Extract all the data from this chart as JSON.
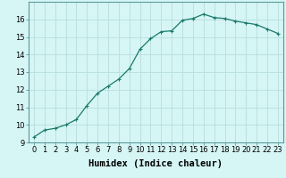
{
  "x": [
    0,
    1,
    2,
    3,
    4,
    5,
    6,
    7,
    8,
    9,
    10,
    11,
    12,
    13,
    14,
    15,
    16,
    17,
    18,
    19,
    20,
    21,
    22,
    23
  ],
  "y": [
    9.3,
    9.7,
    9.8,
    10.0,
    10.3,
    11.1,
    11.8,
    12.2,
    12.6,
    13.2,
    14.3,
    14.9,
    15.3,
    15.35,
    15.95,
    16.05,
    16.3,
    16.1,
    16.05,
    15.9,
    15.8,
    15.7,
    15.45,
    15.2
  ],
  "xlabel": "Humidex (Indice chaleur)",
  "line_color": "#1a7a6a",
  "marker": "+",
  "bg_color": "#d6f5f5",
  "grid_color": "#b8dede",
  "ylim": [
    9,
    17
  ],
  "xlim": [
    -0.5,
    23.5
  ],
  "yticks": [
    9,
    10,
    11,
    12,
    13,
    14,
    15,
    16
  ],
  "xticks": [
    0,
    1,
    2,
    3,
    4,
    5,
    6,
    7,
    8,
    9,
    10,
    11,
    12,
    13,
    14,
    15,
    16,
    17,
    18,
    19,
    20,
    21,
    22,
    23
  ],
  "tick_fontsize": 6,
  "xlabel_fontsize": 7.5,
  "spine_color": "#5a9a9a"
}
